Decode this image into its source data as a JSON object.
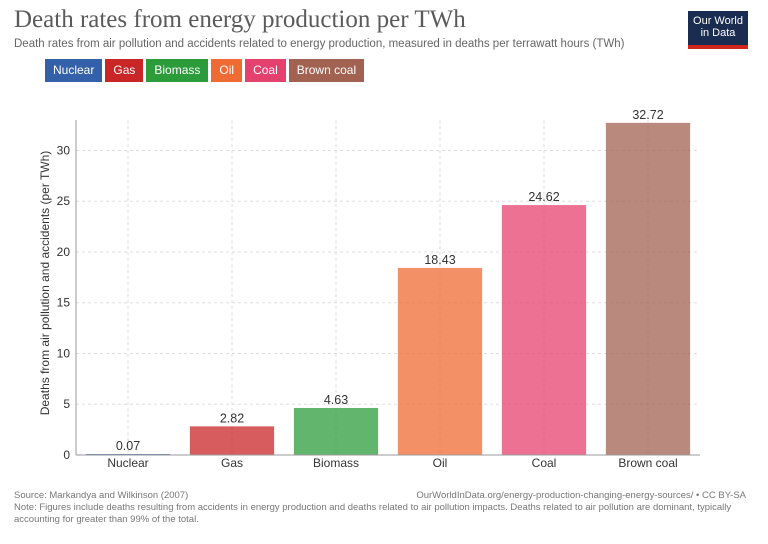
{
  "header": {
    "title": "Death rates from energy production per TWh",
    "subtitle": "Death rates from air pollution and accidents related to energy production, measured in deaths per terrawatt hours (TWh)"
  },
  "logo": {
    "line1": "Our World",
    "line2": "in Data"
  },
  "legend": [
    {
      "label": "Nuclear",
      "color": "#3360a9"
    },
    {
      "label": "Gas",
      "color": "#ca2628"
    },
    {
      "label": "Biomass",
      "color": "#2c9c3b"
    },
    {
      "label": "Oil",
      "color": "#f06b33"
    },
    {
      "label": "Coal",
      "color": "#e5416e"
    },
    {
      "label": "Brown coal",
      "color": "#a26251"
    }
  ],
  "chart_data": {
    "type": "bar",
    "title": "Death rates from energy production per TWh",
    "xlabel": "",
    "ylabel": "Deaths from air pollution and accidents (per TWh)",
    "categories": [
      "Nuclear",
      "Gas",
      "Biomass",
      "Oil",
      "Coal",
      "Brown coal"
    ],
    "values": [
      0.07,
      2.82,
      4.63,
      18.43,
      24.62,
      32.72
    ],
    "value_labels": [
      "0.07",
      "2.82",
      "4.63",
      "18.43",
      "24.62",
      "32.72"
    ],
    "colors": [
      "#3360a9",
      "#ca2628",
      "#2c9c3b",
      "#f06b33",
      "#e5416e",
      "#a26251"
    ],
    "yticks": [
      "0",
      "5",
      "10",
      "15",
      "20",
      "25",
      "30"
    ],
    "ylim": [
      0,
      33
    ],
    "grid": true
  },
  "footer": {
    "source": "Source: Markandya and Wilkinson (2007)",
    "url": "OurWorldInData.org/energy-production-changing-energy-sources/ • CC BY-SA",
    "note": "Note: Figures include deaths resulting from accidents in energy production and deaths related to air pollution impacts. Deaths related to air pollution are dominant, typically accounting for greater than 99% of the total."
  }
}
